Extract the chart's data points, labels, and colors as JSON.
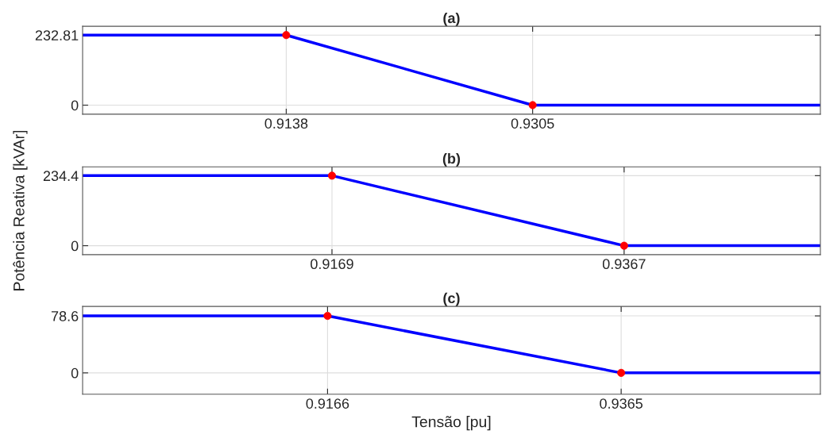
{
  "chart_data": [
    {
      "type": "line",
      "title": "(a)",
      "xlim": [
        0.9,
        0.95
      ],
      "ylim": [
        -30,
        262
      ],
      "xticks": [
        0.9138,
        0.9305
      ],
      "yticks": [
        0,
        232.81
      ],
      "grid": true,
      "line_style": "solid",
      "series": [
        {
          "type": "line",
          "color": "#0000ff",
          "x": [
            0.9,
            0.9138,
            0.9305,
            0.95
          ],
          "values": [
            232.81,
            232.81,
            0,
            0
          ]
        },
        {
          "type": "scatter",
          "marker": "circle",
          "color": "#ff0000",
          "x": [
            0.9138,
            0.9305
          ],
          "values": [
            232.81,
            0
          ]
        }
      ]
    },
    {
      "type": "line",
      "title": "(b)",
      "ylabel": "Potência Reativa [kVAr]",
      "xlim": [
        0.9,
        0.95
      ],
      "ylim": [
        -30,
        264
      ],
      "xticks": [
        0.9169,
        0.9367
      ],
      "yticks": [
        0,
        234.4
      ],
      "grid": true,
      "line_style": "solid",
      "series": [
        {
          "type": "line",
          "color": "#0000ff",
          "x": [
            0.9,
            0.9169,
            0.9367,
            0.95
          ],
          "values": [
            234.4,
            234.4,
            0,
            0
          ]
        },
        {
          "type": "scatter",
          "marker": "circle",
          "color": "#ff0000",
          "x": [
            0.9169,
            0.9367
          ],
          "values": [
            234.4,
            0
          ]
        }
      ]
    },
    {
      "type": "line",
      "title": "(c)",
      "xlabel": "Tensão [pu]",
      "xlim": [
        0.9,
        0.95
      ],
      "ylim": [
        -29.5,
        91.7
      ],
      "xticks": [
        0.9166,
        0.9365
      ],
      "yticks": [
        0,
        78.6
      ],
      "grid": true,
      "line_style": "solid",
      "series": [
        {
          "type": "line",
          "color": "#0000ff",
          "x": [
            0.9,
            0.9166,
            0.9365,
            0.95
          ],
          "values": [
            78.6,
            78.6,
            0,
            0
          ]
        },
        {
          "type": "scatter",
          "marker": "circle",
          "color": "#ff0000",
          "x": [
            0.9166,
            0.9365
          ],
          "values": [
            78.6,
            0
          ]
        }
      ]
    }
  ]
}
